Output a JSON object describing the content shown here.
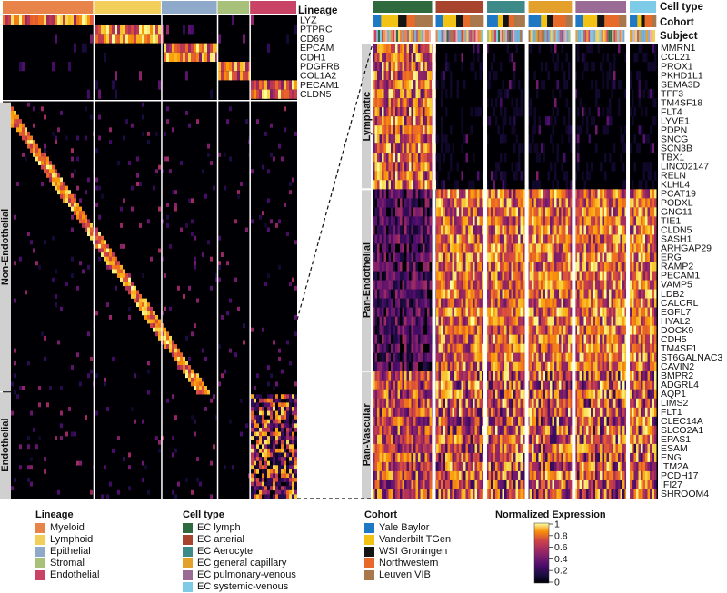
{
  "chart_data": [
    {
      "type": "heatmap",
      "panel": "left",
      "header_label": "Lineage",
      "lineages": [
        "Myeloid",
        "Lymphoid",
        "Epithelial",
        "Stromal",
        "Endothelial"
      ],
      "marker_genes": [
        "LYZ",
        "PTPRC",
        "CD69",
        "EPCAM",
        "CDH1",
        "PDGFRB",
        "COL1A2",
        "PECAM1",
        "CLDN5"
      ],
      "row_groups": [
        "Non-Endothelial",
        "Endothelial"
      ],
      "color_range": [
        0,
        1
      ]
    },
    {
      "type": "heatmap",
      "panel": "right",
      "header_labels": [
        "Cell type",
        "Cohort",
        "Subject"
      ],
      "cell_types": [
        "EC lymph",
        "EC arterial",
        "EC Aerocyte",
        "EC general capillary",
        "EC pulmonary-venous",
        "EC systemic-venous"
      ],
      "cohorts": [
        "Yale Baylor",
        "Vanderbilt TGen",
        "WSI Groningen",
        "Northwestern",
        "Leuven VIB"
      ],
      "gene_groups": [
        {
          "name": "Lymphatic",
          "genes": [
            "MMRN1",
            "CCL21",
            "PROX1",
            "PKHD1L1",
            "SEMA3D",
            "TFF3",
            "TM4SF18",
            "FLT4",
            "LYVE1",
            "PDPN",
            "SNCG",
            "SCN3B",
            "TBX1",
            "LINC02147",
            "RELN",
            "KLHL4"
          ]
        },
        {
          "name": "Pan-Endothelial",
          "genes": [
            "PCAT19",
            "PODXL",
            "GNG11",
            "TIE1",
            "CLDN5",
            "SASH1",
            "ARHGAP29",
            "ERG",
            "RAMP2",
            "PECAM1",
            "VAMP5",
            "LDB2",
            "CALCRL",
            "EGFL7",
            "HYAL2",
            "DOCK9",
            "CDH5",
            "TM4SF1",
            "ST6GALNAC3",
            "CAVIN2"
          ]
        },
        {
          "name": "Pan-Vascular",
          "genes": [
            "BMPR2",
            "ADGRL4",
            "AQP1",
            "LIMS2",
            "FLT1",
            "CLEC14A",
            "SLCO2A1",
            "EPAS1",
            "ESAM",
            "ENG",
            "ITM2A",
            "PCDH17",
            "IFI27",
            "SHROOM4"
          ]
        }
      ],
      "color_range": [
        0,
        1
      ]
    }
  ],
  "legends": {
    "lineage": {
      "title": "Lineage",
      "items": [
        {
          "label": "Myeloid",
          "color": "#e8834a"
        },
        {
          "label": "Lymphoid",
          "color": "#f2cf5b"
        },
        {
          "label": "Epithelial",
          "color": "#8fa9cb"
        },
        {
          "label": "Stromal",
          "color": "#a7c17a"
        },
        {
          "label": "Endothelial",
          "color": "#c94367"
        }
      ]
    },
    "celltype": {
      "title": "Cell type",
      "items": [
        {
          "label": "EC lymph",
          "color": "#2f6a3f"
        },
        {
          "label": "EC arterial",
          "color": "#a8432e"
        },
        {
          "label": "EC Aerocyte",
          "color": "#3d8a89"
        },
        {
          "label": "EC general capillary",
          "color": "#e3a12c"
        },
        {
          "label": "EC pulmonary-venous",
          "color": "#9a6b95"
        },
        {
          "label": "EC systemic-venous",
          "color": "#7dcbe6"
        }
      ]
    },
    "cohort": {
      "title": "Cohort",
      "items": [
        {
          "label": "Yale Baylor",
          "color": "#1f78c4"
        },
        {
          "label": "Vanderbilt TGen",
          "color": "#f2c215"
        },
        {
          "label": "WSI Groningen",
          "color": "#141414"
        },
        {
          "label": "Northwestern",
          "color": "#e86a2a"
        },
        {
          "label": "Leuven VIB",
          "color": "#a8774c"
        }
      ]
    },
    "expression": {
      "title": "Normalized Expression",
      "ticks": [
        "1",
        "0.8",
        "0.6",
        "0.4",
        "0.2",
        "0"
      ]
    }
  }
}
